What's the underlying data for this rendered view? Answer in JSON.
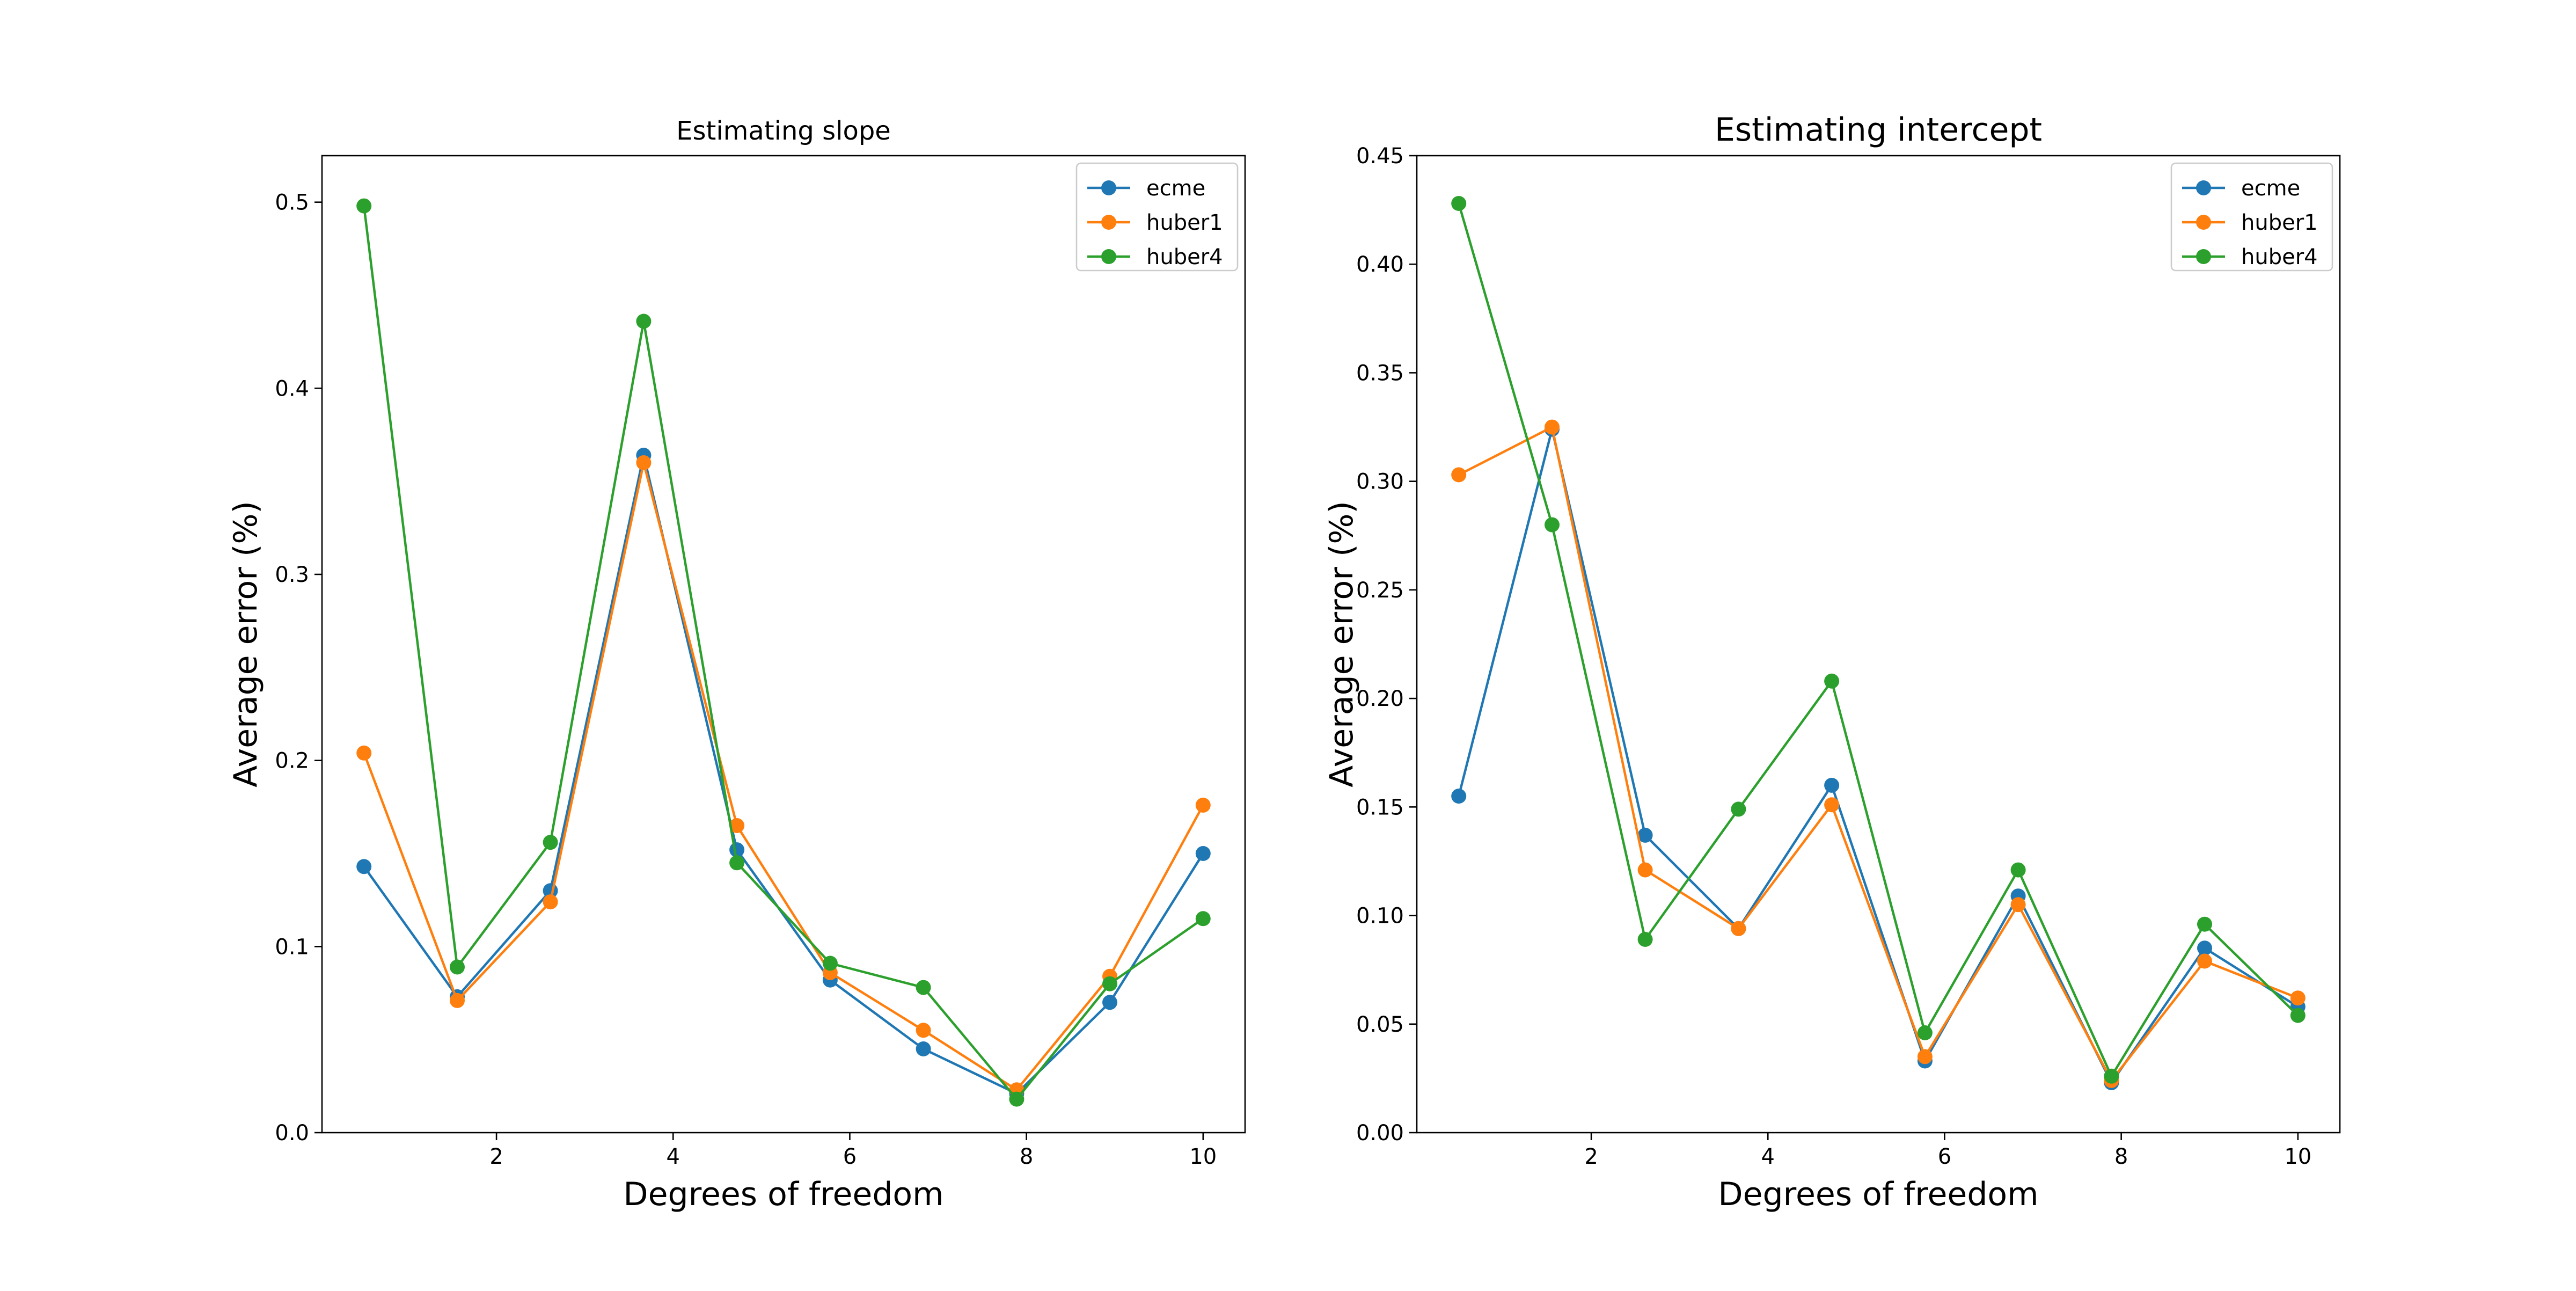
{
  "chart_data": [
    {
      "type": "line",
      "title": "Estimating slope",
      "xlabel": "Degrees of freedom",
      "ylabel": "Average error (%)",
      "xlim": [
        0.025,
        10.475
      ],
      "ylim": [
        0.0,
        0.525
      ],
      "xticks": [
        2,
        4,
        6,
        8,
        10
      ],
      "yticks": [
        0.0,
        0.1,
        0.2,
        0.3,
        0.4,
        0.5
      ],
      "ytick_labels": [
        "0.0",
        "0.1",
        "0.2",
        "0.3",
        "0.4",
        "0.5"
      ],
      "grid": false,
      "legend_position": "top-right",
      "x": [
        0.5,
        1.556,
        2.611,
        3.667,
        4.722,
        5.778,
        6.833,
        7.889,
        8.944,
        10.0
      ],
      "series": [
        {
          "name": "ecme",
          "color": "#1f77b4",
          "values": [
            0.143,
            0.073,
            0.13,
            0.364,
            0.152,
            0.082,
            0.045,
            0.021,
            0.07,
            0.15
          ]
        },
        {
          "name": "huber1",
          "color": "#ff7f0e",
          "values": [
            0.204,
            0.071,
            0.124,
            0.36,
            0.165,
            0.086,
            0.055,
            0.023,
            0.084,
            0.176
          ]
        },
        {
          "name": "huber4",
          "color": "#2ca02c",
          "values": [
            0.498,
            0.089,
            0.156,
            0.436,
            0.145,
            0.091,
            0.078,
            0.018,
            0.08,
            0.115
          ]
        }
      ]
    },
    {
      "type": "line",
      "title": "Estimating intercept",
      "xlabel": "Degrees of freedom",
      "ylabel": "Average error (%)",
      "xlim": [
        0.025,
        10.475
      ],
      "ylim": [
        0.0,
        0.45
      ],
      "xticks": [
        2,
        4,
        6,
        8,
        10
      ],
      "yticks": [
        0.0,
        0.05,
        0.1,
        0.15,
        0.2,
        0.25,
        0.3,
        0.35,
        0.4,
        0.45
      ],
      "ytick_labels": [
        "0.00",
        "0.05",
        "0.10",
        "0.15",
        "0.20",
        "0.25",
        "0.30",
        "0.35",
        "0.40",
        "0.45"
      ],
      "grid": false,
      "legend_position": "top-right",
      "x": [
        0.5,
        1.556,
        2.611,
        3.667,
        4.722,
        5.778,
        6.833,
        7.889,
        8.944,
        10.0
      ],
      "series": [
        {
          "name": "ecme",
          "color": "#1f77b4",
          "values": [
            0.155,
            0.324,
            0.137,
            0.094,
            0.16,
            0.033,
            0.109,
            0.023,
            0.085,
            0.058
          ]
        },
        {
          "name": "huber1",
          "color": "#ff7f0e",
          "values": [
            0.303,
            0.325,
            0.121,
            0.094,
            0.151,
            0.035,
            0.105,
            0.024,
            0.079,
            0.062
          ]
        },
        {
          "name": "huber4",
          "color": "#2ca02c",
          "values": [
            0.428,
            0.28,
            0.089,
            0.149,
            0.208,
            0.046,
            0.121,
            0.026,
            0.096,
            0.054
          ]
        }
      ]
    }
  ]
}
